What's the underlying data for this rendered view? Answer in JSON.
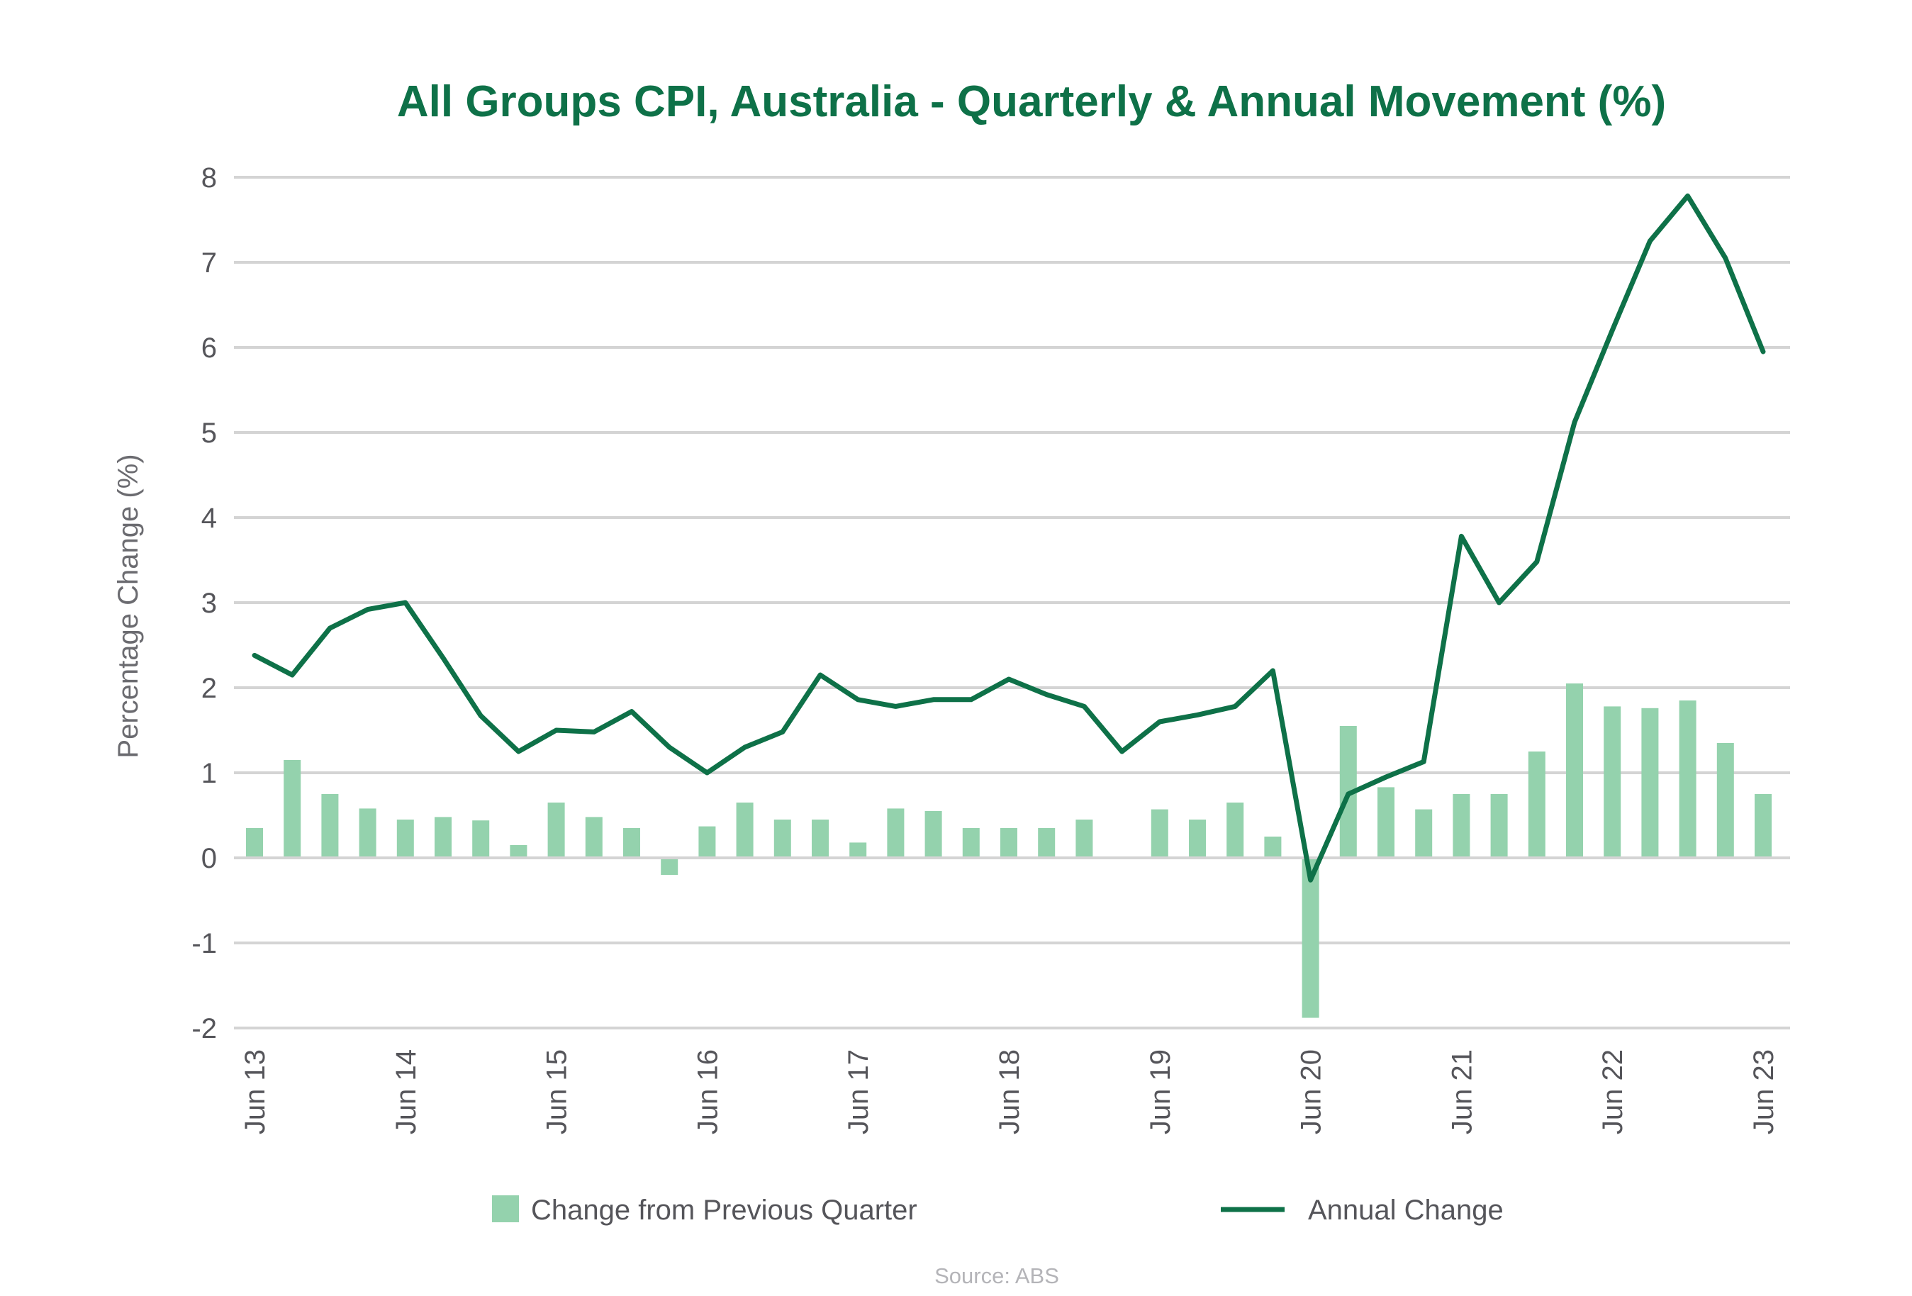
{
  "chart_data": {
    "type": "bar+line",
    "title": "All Groups CPI, Australia - Quarterly & Annual Movement (%)",
    "ylabel": "Percentage Change (%)",
    "xlabel": "",
    "ylim": [
      -2,
      8
    ],
    "yticks": [
      "8",
      "7",
      "6",
      "5",
      "4",
      "3",
      "2",
      "1",
      "0",
      "-1",
      "-2"
    ],
    "ytick_values": [
      8,
      7,
      6,
      5,
      4,
      3,
      2,
      1,
      0,
      -1,
      -2
    ],
    "xtick_labels": [
      "Jun 13",
      "Jun 14",
      "Jun 15",
      "Jun 16",
      "Jun 17",
      "Jun 18",
      "Jun 19",
      "Jun 20",
      "Jun 21",
      "Jun 22",
      "Jun 23"
    ],
    "xtick_indices": [
      0,
      4,
      8,
      12,
      16,
      20,
      24,
      28,
      32,
      36,
      40
    ],
    "grid": true,
    "legend_position": "bottom",
    "series": [
      {
        "name": "Change from Previous Quarter",
        "kind": "bar",
        "color": "#94d2ad",
        "values": [
          0.35,
          1.15,
          0.75,
          0.58,
          0.45,
          0.48,
          0.44,
          0.15,
          0.65,
          0.48,
          0.35,
          -0.2,
          0.37,
          0.65,
          0.45,
          0.45,
          0.18,
          0.58,
          0.55,
          0.35,
          0.35,
          0.35,
          0.45,
          null,
          0.57,
          0.45,
          0.65,
          0.25,
          -1.88,
          1.55,
          0.83,
          0.57,
          0.75,
          0.75,
          1.25,
          2.05,
          1.78,
          1.76,
          1.85,
          1.35,
          0.75
        ]
      },
      {
        "name": "Annual Change",
        "kind": "line",
        "color": "#0e7148",
        "values": [
          2.38,
          2.15,
          2.7,
          2.92,
          3.0,
          2.35,
          1.67,
          1.25,
          1.5,
          1.48,
          1.72,
          1.3,
          1.0,
          1.3,
          1.48,
          2.15,
          1.86,
          1.78,
          1.86,
          1.86,
          2.1,
          1.92,
          1.78,
          1.25,
          1.6,
          1.68,
          1.78,
          2.2,
          -0.26,
          0.75,
          0.95,
          1.13,
          3.78,
          3.0,
          3.48,
          5.12,
          6.2,
          7.25,
          7.78,
          7.05,
          5.95
        ]
      }
    ],
    "source": "Source: ABS"
  }
}
